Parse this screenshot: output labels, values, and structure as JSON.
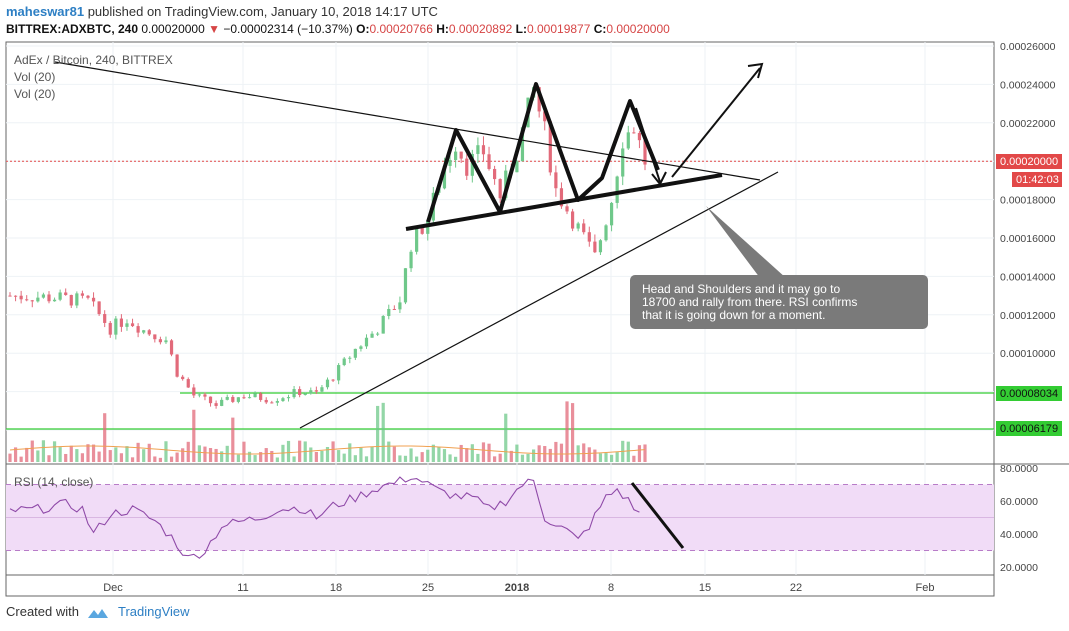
{
  "header": {
    "user": "maheswar81",
    "published": "published on TradingView.com, January 10, 2018 14:17 UTC",
    "symbol": "BITTREX:ADXBTC, 240",
    "last": "0.00020000",
    "change": "−0.00002314 (−10.37%)",
    "o_label": "O:",
    "o_val": "0.00020766",
    "h_label": "H:",
    "h_val": "0.00020892",
    "l_label": "L:",
    "l_val": "0.00019877",
    "c_label": "C:",
    "c_val": "0.00020000"
  },
  "legend": {
    "main": "AdEx / Bitcoin, 240, BITTREX",
    "vol1": "Vol (20)",
    "vol2": "Vol (20)",
    "rsi": "RSI (14, close)"
  },
  "annotation": {
    "text_lines": [
      "Head and Shoulders and it may go to",
      "18700 and rally from there. RSI confirms",
      "that it is going down for a moment."
    ],
    "bg": "#7a7a7a"
  },
  "price_badge": {
    "value": "0.00020000",
    "time": "01:42:03",
    "color": "#e24848"
  },
  "level_badges": [
    {
      "value": "0.00008034",
      "color": "#33cc33"
    },
    {
      "value": "0.00006179",
      "color": "#33cc33"
    }
  ],
  "footer": {
    "created": "Created with",
    "brand": "TradingView"
  },
  "colors": {
    "up": "#6fc88a",
    "down": "#e26a7a",
    "rsi": "#8f4aa8",
    "rsi_band": "#f1dcf7",
    "level": "#33cc33"
  },
  "chart_data": {
    "type": "candlestick",
    "title": "AdEx / Bitcoin, 240, BITTREX",
    "price_axis": {
      "ticks": [
        "0.00026000",
        "0.00024000",
        "0.00022000",
        "0.00020000",
        "0.00018000",
        "0.00016000",
        "0.00014000",
        "0.00012000",
        "0.00010000",
        "0.00008000",
        "0.00006000"
      ]
    },
    "rsi_axis": {
      "ticks": [
        "80.0000",
        "60.0000",
        "40.0000",
        "20.0000"
      ]
    },
    "x_ticks": [
      "Dec",
      "11",
      "18",
      "25",
      "2018",
      "8",
      "15",
      "22",
      "Feb"
    ],
    "horizontal_levels": [
      8.034e-05,
      6.179e-05
    ],
    "last_price": 0.0002,
    "price_path": [
      [
        0,
        0.00013
      ],
      [
        8,
        0.000129
      ],
      [
        14,
        0.000127
      ],
      [
        18,
        0.000113
      ],
      [
        21,
        0.000118
      ],
      [
        24,
        0.000112
      ],
      [
        28,
        0.000107
      ],
      [
        30,
        9e-05
      ],
      [
        33,
        7.8e-05
      ],
      [
        37,
        7.3e-05
      ],
      [
        42,
        7.8e-05
      ],
      [
        47,
        7.6e-05
      ],
      [
        52,
        8e-05
      ],
      [
        55,
        7.9e-05
      ],
      [
        58,
        8.8e-05
      ],
      [
        62,
        0.000102
      ],
      [
        66,
        0.000113
      ],
      [
        70,
        0.000128
      ],
      [
        72,
        0.000157
      ],
      [
        75,
        0.00017
      ],
      [
        78,
        0.000198
      ],
      [
        80,
        0.00021
      ],
      [
        82,
        0.000198
      ],
      [
        85,
        0.000205
      ],
      [
        88,
        0.000182
      ],
      [
        91,
        0.000205
      ],
      [
        94,
        0.000237
      ],
      [
        96,
        0.000215
      ],
      [
        98,
        0.000185
      ],
      [
        100,
        0.000175
      ],
      [
        103,
        0.00016
      ],
      [
        105,
        0.00015
      ],
      [
        108,
        0.00018
      ],
      [
        110,
        0.000212
      ],
      [
        112,
        0.000218
      ],
      [
        114,
        0.0002
      ]
    ],
    "rsi_path": [
      [
        0,
        54
      ],
      [
        5,
        55
      ],
      [
        10,
        58
      ],
      [
        13,
        55
      ],
      [
        15,
        40
      ],
      [
        18,
        52
      ],
      [
        22,
        55
      ],
      [
        26,
        48
      ],
      [
        29,
        38
      ],
      [
        32,
        25
      ],
      [
        35,
        30
      ],
      [
        38,
        45
      ],
      [
        42,
        48
      ],
      [
        45,
        50
      ],
      [
        48,
        55
      ],
      [
        52,
        56
      ],
      [
        55,
        50
      ],
      [
        58,
        57
      ],
      [
        62,
        62
      ],
      [
        66,
        68
      ],
      [
        70,
        72
      ],
      [
        72,
        75
      ],
      [
        74,
        72
      ],
      [
        77,
        66
      ],
      [
        80,
        63
      ],
      [
        83,
        62
      ],
      [
        86,
        55
      ],
      [
        89,
        60
      ],
      [
        92,
        70
      ],
      [
        94,
        72
      ],
      [
        96,
        50
      ],
      [
        98,
        46
      ],
      [
        100,
        42
      ],
      [
        102,
        36
      ],
      [
        104,
        45
      ],
      [
        107,
        62
      ],
      [
        109,
        67
      ],
      [
        111,
        60
      ],
      [
        113,
        52
      ]
    ],
    "rsi_bands": [
      70,
      30
    ]
  }
}
